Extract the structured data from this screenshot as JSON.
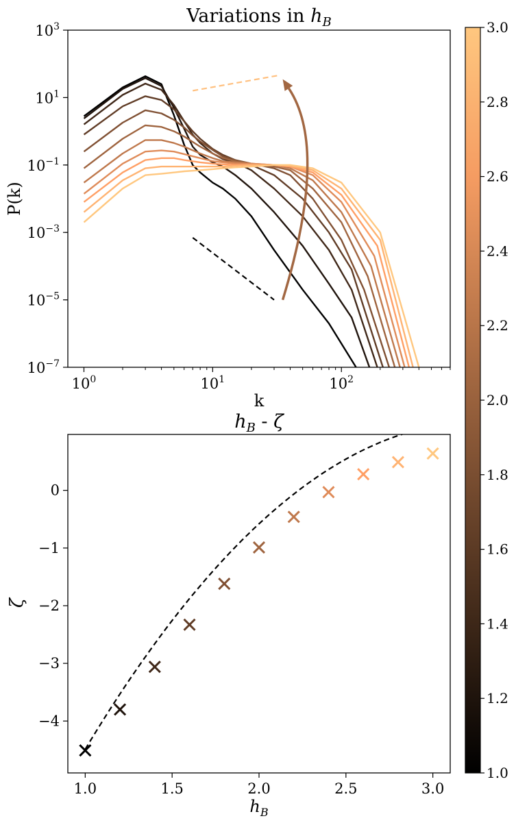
{
  "chart_data": [
    {
      "type": "line",
      "title_prefix": "Variations in ",
      "title_var": "h",
      "title_sub": "B",
      "xlabel": "k",
      "ylabel": "P(k)",
      "xscale": "log",
      "yscale": "log",
      "xlim": [
        0.75,
        700
      ],
      "ylim": [
        1e-07,
        1000
      ],
      "x_ticks": [
        {
          "value": 1,
          "base": "10",
          "exp": "0"
        },
        {
          "value": 10,
          "base": "10",
          "exp": "1"
        },
        {
          "value": 100,
          "base": "10",
          "exp": "2"
        }
      ],
      "y_ticks": [
        {
          "value": 1000,
          "base": "10",
          "exp": "3"
        },
        {
          "value": 10,
          "base": "10",
          "exp": "1"
        },
        {
          "value": 0.1,
          "base": "10",
          "exp": "−1"
        },
        {
          "value": 0.001,
          "base": "10",
          "exp": "−3"
        },
        {
          "value": 1e-05,
          "base": "10",
          "exp": "−5"
        },
        {
          "value": 1e-07,
          "base": "10",
          "exp": "−7"
        }
      ],
      "series": [
        {
          "h_B": 1.0,
          "points": [
            [
              1,
              2.8
            ],
            [
              2,
              20
            ],
            [
              3,
              43
            ],
            [
              4,
              25
            ],
            [
              5,
              3
            ],
            [
              6,
              0.4
            ],
            [
              7,
              0.1
            ],
            [
              8,
              0.06
            ],
            [
              10,
              0.03
            ],
            [
              12,
              0.02
            ],
            [
              15,
              0.01
            ],
            [
              20,
              0.003
            ],
            [
              30,
              0.0003
            ],
            [
              50,
              2e-05
            ],
            [
              80,
              2e-06
            ],
            [
              130,
              1e-07
            ]
          ]
        },
        {
          "h_B": 1.2,
          "points": [
            [
              1,
              2.4
            ],
            [
              2,
              18
            ],
            [
              3,
              38
            ],
            [
              4,
              22
            ],
            [
              5,
              5
            ],
            [
              6,
              1.2
            ],
            [
              7,
              0.35
            ],
            [
              8,
              0.2
            ],
            [
              10,
              0.12
            ],
            [
              12,
              0.09
            ],
            [
              15,
              0.05
            ],
            [
              20,
              0.02
            ],
            [
              30,
              0.004
            ],
            [
              50,
              0.0004
            ],
            [
              80,
              3e-05
            ],
            [
              120,
              3e-06
            ],
            [
              165,
              1e-07
            ]
          ]
        },
        {
          "h_B": 1.4,
          "points": [
            [
              1,
              1.6
            ],
            [
              2,
              12
            ],
            [
              3,
              26
            ],
            [
              4,
              17
            ],
            [
              5,
              6
            ],
            [
              6,
              2
            ],
            [
              7,
              0.8
            ],
            [
              8,
              0.45
            ],
            [
              10,
              0.22
            ],
            [
              12,
              0.15
            ],
            [
              15,
              0.12
            ],
            [
              20,
              0.07
            ],
            [
              30,
              0.02
            ],
            [
              50,
              0.003
            ],
            [
              80,
              0.0003
            ],
            [
              120,
              2e-05
            ],
            [
              190,
              1e-07
            ]
          ]
        },
        {
          "h_B": 1.6,
          "points": [
            [
              1,
              0.8
            ],
            [
              2,
              5.5
            ],
            [
              3,
              11
            ],
            [
              4,
              8.5
            ],
            [
              5,
              4.5
            ],
            [
              6,
              2
            ],
            [
              7,
              1
            ],
            [
              8,
              0.6
            ],
            [
              10,
              0.3
            ],
            [
              12,
              0.2
            ],
            [
              15,
              0.14
            ],
            [
              20,
              0.1
            ],
            [
              30,
              0.05
            ],
            [
              50,
              0.01
            ],
            [
              80,
              0.001
            ],
            [
              120,
              8e-05
            ],
            [
              210,
              1e-07
            ]
          ]
        },
        {
          "h_B": 1.8,
          "points": [
            [
              1,
              0.25
            ],
            [
              2,
              1.8
            ],
            [
              3,
              4.2
            ],
            [
              4,
              3.4
            ],
            [
              5,
              2.2
            ],
            [
              6,
              1.3
            ],
            [
              7,
              0.75
            ],
            [
              8,
              0.5
            ],
            [
              10,
              0.28
            ],
            [
              12,
              0.18
            ],
            [
              15,
              0.14
            ],
            [
              20,
              0.11
            ],
            [
              30,
              0.08
            ],
            [
              40,
              0.05
            ],
            [
              60,
              0.01
            ],
            [
              100,
              0.0006
            ],
            [
              150,
              2e-05
            ],
            [
              235,
              1e-07
            ]
          ]
        },
        {
          "h_B": 2.0,
          "points": [
            [
              1,
              0.08
            ],
            [
              2,
              0.6
            ],
            [
              3,
              1.5
            ],
            [
              4,
              1.35
            ],
            [
              5,
              1
            ],
            [
              6,
              0.7
            ],
            [
              8,
              0.35
            ],
            [
              10,
              0.22
            ],
            [
              12,
              0.16
            ],
            [
              15,
              0.13
            ],
            [
              20,
              0.11
            ],
            [
              30,
              0.09
            ],
            [
              40,
              0.07
            ],
            [
              60,
              0.02
            ],
            [
              100,
              0.002
            ],
            [
              160,
              5e-05
            ],
            [
              260,
              1e-07
            ]
          ]
        },
        {
          "h_B": 2.2,
          "points": [
            [
              1,
              0.03
            ],
            [
              2,
              0.22
            ],
            [
              3,
              0.55
            ],
            [
              4,
              0.55
            ],
            [
              5,
              0.45
            ],
            [
              6,
              0.35
            ],
            [
              8,
              0.22
            ],
            [
              10,
              0.16
            ],
            [
              12,
              0.13
            ],
            [
              15,
              0.12
            ],
            [
              20,
              0.11
            ],
            [
              30,
              0.1
            ],
            [
              40,
              0.08
            ],
            [
              60,
              0.035
            ],
            [
              100,
              0.004
            ],
            [
              170,
              0.0001
            ],
            [
              285,
              1e-07
            ]
          ]
        },
        {
          "h_B": 2.4,
          "points": [
            [
              1,
              0.014
            ],
            [
              2,
              0.11
            ],
            [
              3,
              0.25
            ],
            [
              4,
              0.27
            ],
            [
              5,
              0.25
            ],
            [
              6,
              0.21
            ],
            [
              8,
              0.16
            ],
            [
              10,
              0.13
            ],
            [
              12,
              0.12
            ],
            [
              15,
              0.11
            ],
            [
              20,
              0.11
            ],
            [
              30,
              0.1
            ],
            [
              40,
              0.09
            ],
            [
              60,
              0.05
            ],
            [
              100,
              0.008
            ],
            [
              180,
              0.0002
            ],
            [
              310,
              1e-07
            ]
          ]
        },
        {
          "h_B": 2.6,
          "points": [
            [
              1,
              0.008
            ],
            [
              2,
              0.06
            ],
            [
              3,
              0.14
            ],
            [
              4,
              0.16
            ],
            [
              5,
              0.16
            ],
            [
              6,
              0.14
            ],
            [
              8,
              0.12
            ],
            [
              10,
              0.11
            ],
            [
              12,
              0.105
            ],
            [
              15,
              0.1
            ],
            [
              20,
              0.1
            ],
            [
              30,
              0.1
            ],
            [
              40,
              0.09
            ],
            [
              60,
              0.06
            ],
            [
              100,
              0.013
            ],
            [
              190,
              0.0004
            ],
            [
              335,
              1e-07
            ]
          ]
        },
        {
          "h_B": 2.8,
          "points": [
            [
              1,
              0.004
            ],
            [
              2,
              0.035
            ],
            [
              3,
              0.08
            ],
            [
              4,
              0.09
            ],
            [
              5,
              0.09
            ],
            [
              6,
              0.09
            ],
            [
              8,
              0.09
            ],
            [
              10,
              0.09
            ],
            [
              12,
              0.09
            ],
            [
              15,
              0.095
            ],
            [
              20,
              0.1
            ],
            [
              30,
              0.1
            ],
            [
              40,
              0.095
            ],
            [
              60,
              0.07
            ],
            [
              100,
              0.02
            ],
            [
              200,
              0.0006
            ],
            [
              360,
              1e-07
            ]
          ]
        },
        {
          "h_B": 3.0,
          "points": [
            [
              1,
              0.002
            ],
            [
              2,
              0.02
            ],
            [
              3,
              0.05
            ],
            [
              4,
              0.055
            ],
            [
              5,
              0.06
            ],
            [
              6,
              0.065
            ],
            [
              8,
              0.07
            ],
            [
              10,
              0.075
            ],
            [
              12,
              0.08
            ],
            [
              15,
              0.085
            ],
            [
              20,
              0.09
            ],
            [
              30,
              0.1
            ],
            [
              40,
              0.1
            ],
            [
              60,
              0.08
            ],
            [
              100,
              0.03
            ],
            [
              200,
              0.001
            ],
            [
              400,
              1e-07
            ]
          ]
        }
      ],
      "reference_lines": [
        {
          "name": "steep-slope-reference",
          "color": "#000000",
          "points": [
            [
              7,
              0.0007
            ],
            [
              30,
              1e-05
            ]
          ]
        },
        {
          "name": "shallow-slope-reference",
          "color": "#ffc07f",
          "points": [
            [
              7,
              16
            ],
            [
              32,
              45
            ]
          ]
        }
      ],
      "arrow": {
        "color": "#a26742",
        "from": [
          35,
          1e-05
        ],
        "control": [
          80,
          0.3
        ],
        "to": [
          35,
          35
        ]
      }
    },
    {
      "type": "scatter",
      "title_var": "h",
      "title_sub": "B",
      "title_mid": " - ",
      "title_end": "ζ",
      "xlabel_var": "h",
      "xlabel_sub": "B",
      "ylabel": "ζ",
      "xlim": [
        0.9,
        3.1
      ],
      "ylim": [
        -4.9,
        0.97
      ],
      "x_ticks": [
        1.0,
        1.5,
        2.0,
        2.5,
        3.0
      ],
      "x_tick_labels": [
        "1.0",
        "1.5",
        "2.0",
        "2.5",
        "3.0"
      ],
      "y_ticks": [
        0,
        -1,
        -2,
        -3,
        -4
      ],
      "y_tick_labels": [
        "0",
        "−1",
        "−2",
        "−3",
        "−4"
      ],
      "points": [
        {
          "x": 1.0,
          "y": -4.51
        },
        {
          "x": 1.2,
          "y": -3.8
        },
        {
          "x": 1.4,
          "y": -3.06
        },
        {
          "x": 1.6,
          "y": -2.33
        },
        {
          "x": 1.8,
          "y": -1.62
        },
        {
          "x": 2.0,
          "y": -0.99
        },
        {
          "x": 2.2,
          "y": -0.46
        },
        {
          "x": 2.4,
          "y": -0.03
        },
        {
          "x": 2.6,
          "y": 0.28
        },
        {
          "x": 2.8,
          "y": 0.49
        },
        {
          "x": 3.0,
          "y": 0.64
        }
      ],
      "fit_curve": {
        "type": "quadratic",
        "a": -1.11,
        "b": 7.24,
        "c": -10.62
      }
    }
  ],
  "colorbar": {
    "colormap": "copper",
    "min": 1.0,
    "max": 3.0,
    "ticks": [
      1.0,
      1.2,
      1.4,
      1.6,
      1.8,
      2.0,
      2.2,
      2.4,
      2.6,
      2.8,
      3.0
    ],
    "tick_labels": [
      "1.0",
      "1.2",
      "1.4",
      "1.6",
      "1.8",
      "2.0",
      "2.2",
      "2.4",
      "2.6",
      "2.8",
      "3.0"
    ]
  }
}
